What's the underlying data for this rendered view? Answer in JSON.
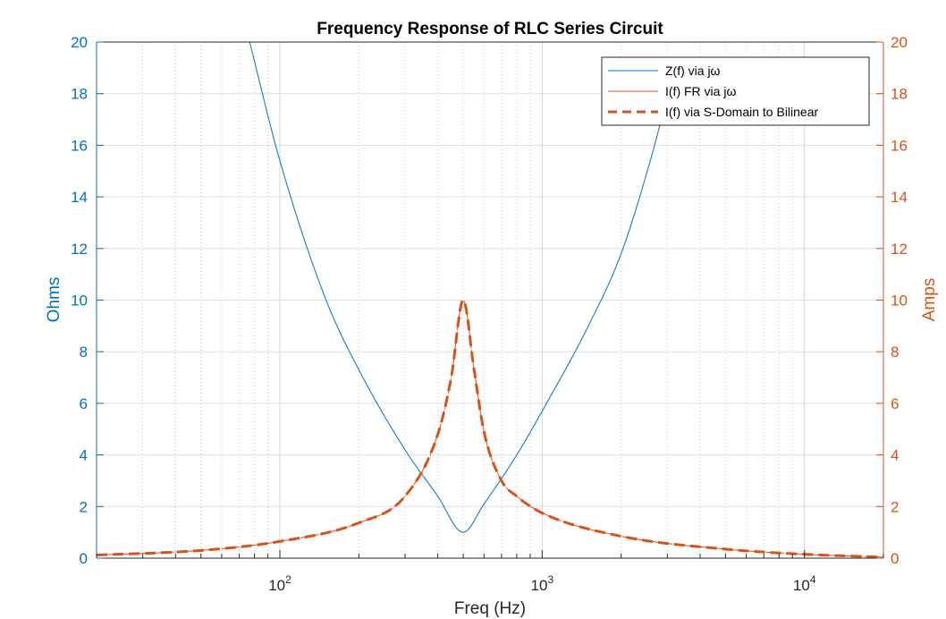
{
  "chart_data": {
    "type": "line",
    "title": "Frequency Response of RLC Series Circuit",
    "xlabel": "Freq (Hz)",
    "ylabel_left": "Ohms",
    "ylabel_right": "Amps",
    "xscale": "log",
    "xlim": [
      20,
      20000
    ],
    "ylim_left": [
      0,
      20
    ],
    "ylim_right": [
      0,
      20
    ],
    "grid": true,
    "legend_location": "top-right",
    "x_ticks": [
      {
        "value": 100,
        "base": "10",
        "exp": "2"
      },
      {
        "value": 1000,
        "base": "10",
        "exp": "3"
      },
      {
        "value": 10000,
        "base": "10",
        "exp": "4"
      }
    ],
    "y_ticks_left": [
      "0",
      "2",
      "4",
      "6",
      "8",
      "10",
      "12",
      "14",
      "16",
      "18",
      "20"
    ],
    "y_ticks_right": [
      "0",
      "2",
      "4",
      "6",
      "8",
      "10",
      "12",
      "14",
      "16",
      "18",
      "20"
    ],
    "series": [
      {
        "name": "Z(f) via jω",
        "axis": "left",
        "color": "#0072BD",
        "style": "solid",
        "x": [
          75,
          100,
          150,
          200,
          300,
          400,
          500,
          600,
          800,
          1000,
          1500,
          2000,
          2600,
          3000
        ],
        "y": [
          20.4,
          15.4,
          10.0,
          7.3,
          4.2,
          2.4,
          1.0,
          2.1,
          4.0,
          5.7,
          9.0,
          11.8,
          15.5,
          17.9
        ]
      },
      {
        "name": "I(f) FR via jω",
        "axis": "right",
        "color": "#D95319",
        "style": "solid",
        "x": [
          20,
          50,
          100,
          200,
          300,
          400,
          450,
          500,
          550,
          600,
          700,
          800,
          1000,
          2000,
          5000,
          10000,
          20000
        ],
        "y": [
          0.12,
          0.3,
          0.65,
          1.37,
          2.4,
          4.8,
          7.0,
          10.0,
          7.3,
          4.9,
          3.0,
          2.4,
          1.75,
          0.85,
          0.35,
          0.15,
          0.04
        ]
      },
      {
        "name": "I(f) via S-Domain to Bilinear",
        "axis": "right",
        "color": "#D95319",
        "style": "dashed",
        "x": [
          20,
          50,
          100,
          200,
          300,
          400,
          450,
          500,
          550,
          600,
          700,
          800,
          1000,
          2000,
          5000,
          10000,
          20000
        ],
        "y": [
          0.12,
          0.3,
          0.65,
          1.37,
          2.4,
          4.8,
          7.0,
          10.0,
          7.3,
          4.9,
          3.0,
          2.4,
          1.75,
          0.85,
          0.35,
          0.15,
          0.04
        ]
      }
    ],
    "colors": {
      "left_axis": "#0072BD",
      "right_axis": "#D95319",
      "grid": "#DFDFDF"
    }
  }
}
